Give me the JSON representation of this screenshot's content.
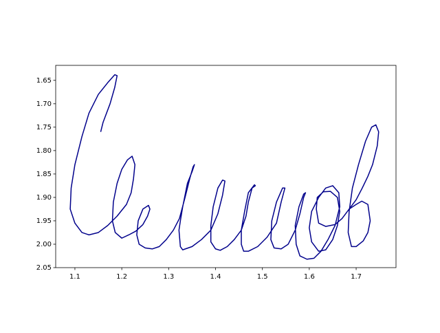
{
  "chart_data": {
    "type": "line",
    "x": [
      1.155,
      1.16,
      1.175,
      1.185,
      1.19,
      1.185,
      1.17,
      1.15,
      1.13,
      1.115,
      1.1,
      1.092,
      1.09,
      1.1,
      1.115,
      1.13,
      1.15,
      1.17,
      1.19,
      1.21,
      1.22,
      1.225,
      1.228,
      1.222,
      1.212,
      1.2,
      1.19,
      1.182,
      1.18,
      1.186,
      1.2,
      1.215,
      1.23,
      1.245,
      1.255,
      1.26,
      1.257,
      1.245,
      1.235,
      1.232,
      1.237,
      1.25,
      1.265,
      1.28,
      1.295,
      1.31,
      1.323,
      1.335,
      1.345,
      1.352,
      1.355,
      1.35,
      1.34,
      1.33,
      1.325,
      1.322,
      1.325,
      1.33,
      1.35,
      1.37,
      1.39,
      1.405,
      1.415,
      1.42,
      1.415,
      1.405,
      1.395,
      1.39,
      1.39,
      1.4,
      1.41,
      1.425,
      1.44,
      1.455,
      1.465,
      1.47,
      1.478,
      1.485,
      1.483,
      1.47,
      1.462,
      1.455,
      1.455,
      1.46,
      1.47,
      1.49,
      1.51,
      1.53,
      1.54,
      1.548,
      1.543,
      1.53,
      1.52,
      1.518,
      1.525,
      1.54,
      1.555,
      1.57,
      1.58,
      1.588,
      1.592,
      1.588,
      1.578,
      1.57,
      1.572,
      1.58,
      1.595,
      1.61,
      1.625,
      1.64,
      1.655,
      1.665,
      1.663,
      1.65,
      1.635,
      1.62,
      1.605,
      1.6,
      1.605,
      1.62,
      1.635,
      1.65,
      1.66,
      1.665,
      1.66,
      1.645,
      1.63,
      1.617,
      1.615,
      1.62,
      1.635,
      1.655,
      1.67,
      1.685,
      1.7,
      1.713,
      1.725,
      1.735,
      1.745,
      1.748,
      1.742,
      1.733,
      1.72,
      1.705,
      1.692,
      1.685,
      1.683,
      1.69,
      1.7,
      1.715,
      1.725,
      1.73,
      1.725,
      1.712,
      1.7,
      1.685
    ],
    "series": [
      {
        "color": "#00008b",
        "values": [
          1.76,
          1.74,
          1.7,
          1.665,
          1.64,
          1.638,
          1.655,
          1.68,
          1.72,
          1.77,
          1.83,
          1.88,
          1.925,
          1.955,
          1.975,
          1.98,
          1.975,
          1.96,
          1.94,
          1.915,
          1.89,
          1.86,
          1.83,
          1.812,
          1.82,
          1.84,
          1.87,
          1.91,
          1.95,
          1.975,
          1.987,
          1.98,
          1.972,
          1.958,
          1.94,
          1.925,
          1.917,
          1.925,
          1.95,
          1.98,
          2.0,
          2.008,
          2.01,
          2.005,
          1.99,
          1.97,
          1.945,
          1.9,
          1.86,
          1.835,
          1.83,
          1.845,
          1.87,
          1.92,
          1.95,
          1.97,
          2.005,
          2.012,
          2.005,
          1.99,
          1.97,
          1.935,
          1.895,
          1.865,
          1.863,
          1.88,
          1.92,
          1.96,
          1.995,
          2.01,
          2.013,
          2.005,
          1.99,
          1.97,
          1.94,
          1.91,
          1.88,
          1.875,
          1.873,
          1.89,
          1.93,
          1.97,
          2.0,
          2.015,
          2.015,
          2.005,
          1.985,
          1.955,
          1.91,
          1.88,
          1.88,
          1.91,
          1.95,
          1.99,
          2.008,
          2.01,
          2.0,
          1.97,
          1.935,
          1.9,
          1.89,
          1.893,
          1.92,
          1.96,
          2.0,
          2.025,
          2.032,
          2.03,
          2.015,
          1.99,
          1.96,
          1.92,
          1.89,
          1.875,
          1.88,
          1.9,
          1.93,
          1.965,
          1.995,
          2.015,
          2.012,
          1.99,
          1.96,
          1.93,
          1.9,
          1.887,
          1.888,
          1.9,
          1.925,
          1.955,
          1.962,
          1.958,
          1.945,
          1.925,
          1.905,
          1.88,
          1.855,
          1.83,
          1.79,
          1.76,
          1.745,
          1.75,
          1.78,
          1.83,
          1.88,
          1.93,
          1.975,
          2.005,
          2.005,
          1.993,
          1.975,
          1.95,
          1.915,
          1.908,
          1.915,
          1.925
        ]
      }
    ],
    "xlim": [
      1.059,
      1.785
    ],
    "xticks": [
      1.1,
      1.2,
      1.3,
      1.4,
      1.5,
      1.6,
      1.7
    ],
    "ylim": [
      2.05,
      1.618
    ],
    "yticks": [
      1.65,
      {
        "value": 1.7,
        "label": "1.70"
      },
      1.75,
      {
        "value": 1.8,
        "label": "1.80"
      },
      1.85,
      {
        "value": 1.9,
        "label": "1.90"
      },
      1.95,
      {
        "value": 2.0,
        "label": "2.00"
      },
      2.05
    ]
  }
}
